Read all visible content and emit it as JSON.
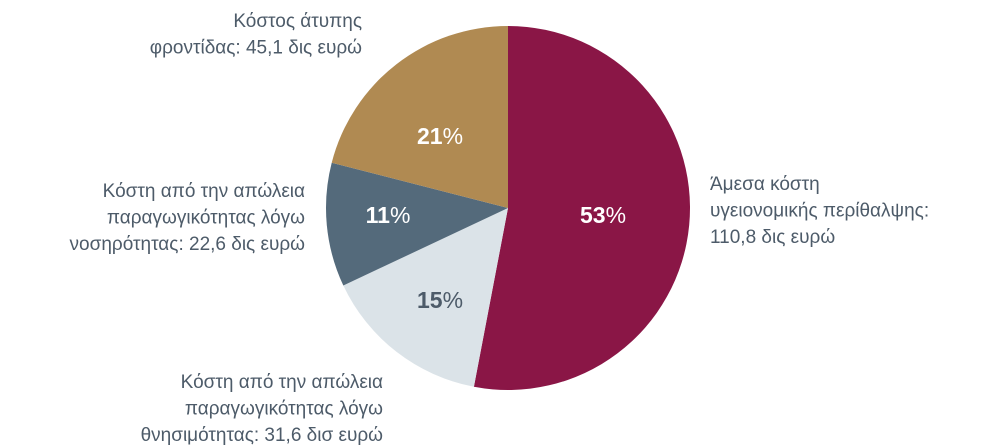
{
  "chart_data": {
    "type": "pie",
    "categories": [
      [
        "Άμεσα κόστη",
        "υγειονομικής περίθαλψης:",
        "110,8 δις ευρώ"
      ],
      [
        "Κόστη από την απώλεια",
        "παραγωγικότητας λόγω",
        "θνησιμότητας: 31,6 δισ ευρώ"
      ],
      [
        "Κόστη από την απώλεια",
        "παραγωγικότητας λόγω",
        "νοσηρότητας: 22,6 δις ευρώ"
      ],
      [
        "Κόστος άτυπης",
        "φροντίδας: 45,1 δις ευρώ"
      ]
    ],
    "values": [
      53,
      15,
      11,
      21
    ],
    "value_labels": [
      "53%",
      "15%",
      "11%",
      "21%"
    ],
    "colors": [
      "#8a1646",
      "#dbe3e8",
      "#546a7b",
      "#b08a52"
    ],
    "label_colors": [
      "#ffffff",
      "#4d5b69",
      "#ffffff",
      "#ffffff"
    ]
  }
}
